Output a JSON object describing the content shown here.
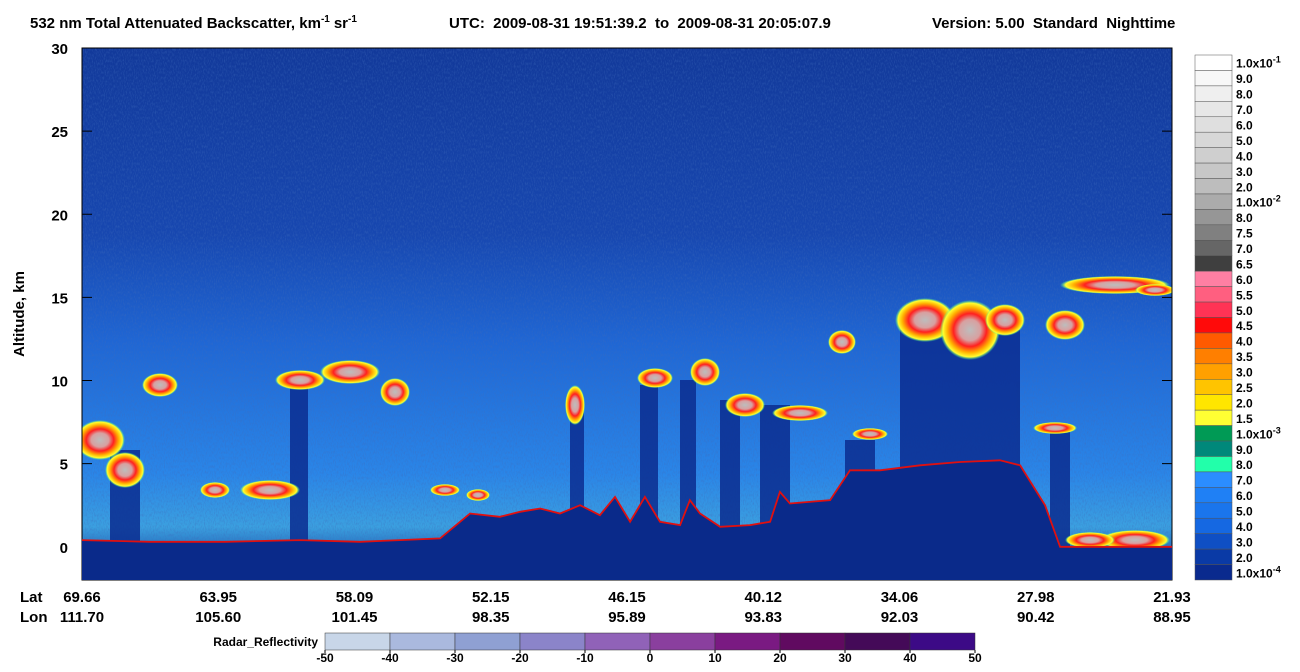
{
  "chart_data": {
    "type": "curtain",
    "title": {
      "main": "532 nm Total Attenuated Backscatter, km",
      "sup1": "-1",
      "unit2": "sr",
      "sup2": "-1",
      "utc": "UTC:  2009-08-31 19:51:39.2  to  2009-08-31 20:05:07.9",
      "version": "Version: 5.00  Standard  Nighttime"
    },
    "y_label": "Altitude, km",
    "ylim": [
      -2,
      30
    ],
    "yticks": [
      0,
      5,
      10,
      15,
      20,
      25,
      30
    ],
    "xlim": [
      69.66,
      21.93
    ],
    "lat_label": "Lat",
    "lon_label": "Lon",
    "lat_ticks": [
      69.66,
      63.95,
      58.09,
      52.15,
      46.15,
      40.12,
      34.06,
      27.98,
      21.93
    ],
    "lon_ticks": [
      {
        "value": 111.7,
        "label": "111.70"
      },
      {
        "value": 105.6,
        "label": "105.60"
      },
      101.45,
      98.35,
      95.89,
      93.83,
      92.03,
      90.42,
      88.95
    ],
    "surface": {
      "color": "#e01010",
      "x": [
        69.66,
        66.68,
        63.4,
        60.11,
        57.49,
        55.73,
        53.98,
        52.67,
        51.36,
        50.48,
        49.6,
        48.73,
        47.85,
        46.98,
        46.32,
        45.66,
        45.01,
        44.35,
        43.47,
        43.04,
        42.6,
        41.72,
        40.41,
        39.53,
        39.1,
        38.66,
        36.9,
        36.03,
        34.71,
        32.96,
        31.21,
        29.46,
        28.58,
        27.49,
        26.83,
        25.08,
        21.93
      ],
      "values": [
        0.4,
        0.3,
        0.3,
        0.4,
        0.3,
        0.4,
        0.5,
        2.0,
        1.8,
        2.1,
        2.3,
        2.0,
        2.5,
        1.9,
        3.0,
        1.5,
        3.0,
        1.5,
        1.3,
        2.8,
        2.0,
        1.2,
        1.3,
        1.5,
        3.3,
        2.6,
        2.8,
        4.6,
        4.6,
        4.9,
        5.1,
        5.2,
        4.9,
        2.5,
        0.0,
        0.0,
        0.0
      ]
    },
    "colorbar": [
      {
        "color": "#ffffff",
        "label": "1.0x10",
        "sup": "-1"
      },
      {
        "color": "#f7f7f7",
        "label": "9.0"
      },
      {
        "color": "#efefef",
        "label": "8.0"
      },
      {
        "color": "#e7e7e7",
        "label": "7.0"
      },
      {
        "color": "#dfdfdf",
        "label": "6.0"
      },
      {
        "color": "#d7d7d7",
        "label": "5.0"
      },
      {
        "color": "#cfcfcf",
        "label": "4.0"
      },
      {
        "color": "#c7c7c7",
        "label": "3.0"
      },
      {
        "color": "#bdbdbd",
        "label": "2.0"
      },
      {
        "color": "#ababab",
        "label": "1.0x10",
        "sup": "-2"
      },
      {
        "color": "#969696",
        "label": "8.0"
      },
      {
        "color": "#808080",
        "label": "7.5"
      },
      {
        "color": "#666666",
        "label": "7.0"
      },
      {
        "color": "#3f3f3f",
        "label": "6.5"
      },
      {
        "color": "#ff7fa3",
        "label": "6.0"
      },
      {
        "color": "#ff5f80",
        "label": "5.5"
      },
      {
        "color": "#ff3355",
        "label": "5.0"
      },
      {
        "color": "#ff0a0a",
        "label": "4.5"
      },
      {
        "color": "#ff5a00",
        "label": "4.0"
      },
      {
        "color": "#ff7f00",
        "label": "3.5"
      },
      {
        "color": "#ffa000",
        "label": "3.0"
      },
      {
        "color": "#ffc400",
        "label": "2.5"
      },
      {
        "color": "#ffe600",
        "label": "2.0"
      },
      {
        "color": "#ffff33",
        "label": "1.5"
      },
      {
        "color": "#009a55",
        "label": "1.0x10",
        "sup": "-3"
      },
      {
        "color": "#00887a",
        "label": "9.0"
      },
      {
        "color": "#22ffaa",
        "label": "8.0"
      },
      {
        "color": "#2b8dff",
        "label": "7.0"
      },
      {
        "color": "#1f80f5",
        "label": "6.0"
      },
      {
        "color": "#1a75ec",
        "label": "5.0"
      },
      {
        "color": "#1568e2",
        "label": "4.0"
      },
      {
        "color": "#0f4fc4",
        "label": "3.0"
      },
      {
        "color": "#0a3aa6",
        "label": "2.0"
      },
      {
        "color": "#0a2a8e",
        "label": "1.0x10",
        "sup": "-4"
      }
    ],
    "radar": {
      "title": "Radar_Reflectivity",
      "colors": [
        "#c8d6e8",
        "#aab9de",
        "#8fa0d3",
        "#8b84c9",
        "#9062b8",
        "#8a3f9e",
        "#7a1a82",
        "#600a60",
        "#440a58",
        "#3c0a86"
      ],
      "ticks": [
        -50,
        -40,
        -30,
        -20,
        -10,
        0,
        10,
        20,
        30,
        40,
        50
      ]
    }
  }
}
